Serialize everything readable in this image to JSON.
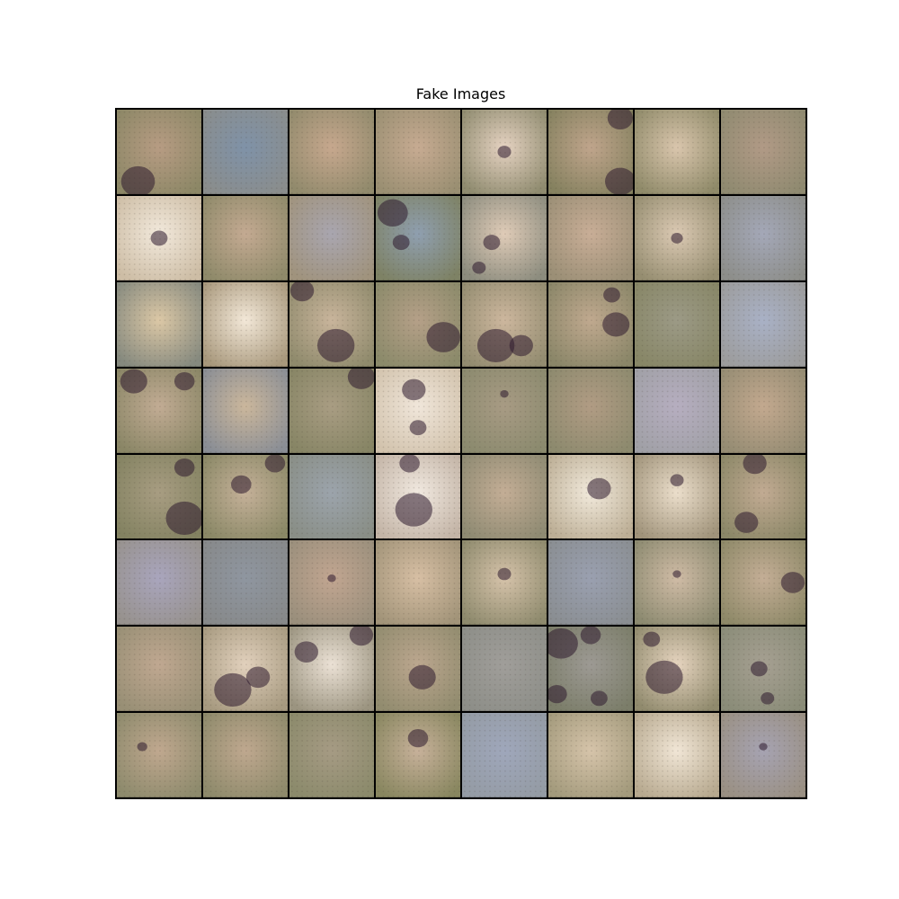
{
  "figure": {
    "title": "Fake Images"
  },
  "grid": {
    "rows": 8,
    "columns": 8,
    "tiles": [
      {
        "base": "#8c8766",
        "tint": "#b79c83",
        "dark": [
          [
            0.25,
            0.85,
            0.2
          ]
        ]
      },
      {
        "base": "#8a8d8c",
        "tint": "#7f92a8",
        "dark": []
      },
      {
        "base": "#918a6c",
        "tint": "#c7a88e",
        "dark": []
      },
      {
        "base": "#9a8f72",
        "tint": "#c7ab92",
        "dark": []
      },
      {
        "base": "#8f8b6f",
        "tint": "#e6d3c2",
        "dark": [
          [
            0.5,
            0.5,
            0.08
          ]
        ]
      },
      {
        "base": "#85815f",
        "tint": "#c0a58c",
        "dark": [
          [
            0.85,
            0.85,
            0.18
          ],
          [
            0.85,
            0.1,
            0.15
          ]
        ]
      },
      {
        "base": "#8f8a69",
        "tint": "#dac6ad",
        "dark": []
      },
      {
        "base": "#8f8a70",
        "tint": "#b19a86",
        "dark": []
      },
      {
        "base": "#cdbda5",
        "tint": "#f2e9dc",
        "dark": [
          [
            0.5,
            0.5,
            0.1
          ]
        ]
      },
      {
        "base": "#8f8a6a",
        "tint": "#c4aa92",
        "dark": []
      },
      {
        "base": "#a0937d",
        "tint": "#a9a6b0",
        "dark": []
      },
      {
        "base": "#7e8265",
        "tint": "#8f9fb0",
        "dark": [
          [
            0.2,
            0.2,
            0.18
          ],
          [
            0.3,
            0.55,
            0.1
          ]
        ]
      },
      {
        "base": "#8c8c7e",
        "tint": "#e0ccb8",
        "dark": [
          [
            0.35,
            0.55,
            0.1
          ],
          [
            0.2,
            0.85,
            0.08
          ]
        ]
      },
      {
        "base": "#9b8f76",
        "tint": "#c9ae97",
        "dark": []
      },
      {
        "base": "#958d70",
        "tint": "#dccab4",
        "dark": [
          [
            0.5,
            0.5,
            0.07
          ]
        ]
      },
      {
        "base": "#8d8e8a",
        "tint": "#a4a8b8",
        "dark": []
      },
      {
        "base": "#85897e",
        "tint": "#dcc8a6",
        "dark": []
      },
      {
        "base": "#a8987c",
        "tint": "#f3e8d8",
        "dark": []
      },
      {
        "base": "#8f8a6c",
        "tint": "#c9b59c",
        "dark": [
          [
            0.15,
            0.1,
            0.14
          ],
          [
            0.55,
            0.75,
            0.22
          ]
        ]
      },
      {
        "base": "#8b8a6a",
        "tint": "#b5a088",
        "dark": [
          [
            0.8,
            0.65,
            0.2
          ]
        ]
      },
      {
        "base": "#938c70",
        "tint": "#cdb79e",
        "dark": [
          [
            0.4,
            0.75,
            0.22
          ],
          [
            0.7,
            0.75,
            0.14
          ]
        ]
      },
      {
        "base": "#8a8668",
        "tint": "#c0a98f",
        "dark": [
          [
            0.8,
            0.5,
            0.16
          ],
          [
            0.75,
            0.15,
            0.1
          ]
        ]
      },
      {
        "base": "#878666",
        "tint": "#9c9a86",
        "dark": []
      },
      {
        "base": "#9c9c9c",
        "tint": "#a9b1c6",
        "dark": []
      },
      {
        "base": "#8a8666",
        "tint": "#c2ac94",
        "dark": [
          [
            0.2,
            0.15,
            0.16
          ],
          [
            0.8,
            0.15,
            0.12
          ]
        ]
      },
      {
        "base": "#8a8e95",
        "tint": "#cbb79c",
        "dark": []
      },
      {
        "base": "#878565",
        "tint": "#a99d83",
        "dark": [
          [
            0.85,
            0.1,
            0.16
          ]
        ]
      },
      {
        "base": "#d2c3ad",
        "tint": "#f0e6da",
        "dark": [
          [
            0.45,
            0.25,
            0.14
          ],
          [
            0.5,
            0.7,
            0.1
          ]
        ]
      },
      {
        "base": "#8b8a6e",
        "tint": "#a89b84",
        "dark": [
          [
            0.5,
            0.3,
            0.05
          ]
        ]
      },
      {
        "base": "#8d8a6e",
        "tint": "#b19c84",
        "dark": []
      },
      {
        "base": "#a0a0a6",
        "tint": "#b6aec0",
        "dark": []
      },
      {
        "base": "#958c73",
        "tint": "#c3a98f",
        "dark": []
      },
      {
        "base": "#838261",
        "tint": "#a89d82",
        "dark": [
          [
            0.8,
            0.75,
            0.22
          ],
          [
            0.8,
            0.15,
            0.12
          ]
        ]
      },
      {
        "base": "#8a8866",
        "tint": "#c5b199",
        "dark": [
          [
            0.45,
            0.35,
            0.12
          ],
          [
            0.85,
            0.1,
            0.12
          ]
        ]
      },
      {
        "base": "#898e86",
        "tint": "#9ca4ac",
        "dark": []
      },
      {
        "base": "#c3b4a6",
        "tint": "#f1e9e0",
        "dark": [
          [
            0.45,
            0.65,
            0.22
          ],
          [
            0.4,
            0.1,
            0.12
          ]
        ]
      },
      {
        "base": "#8e8a72",
        "tint": "#c4ae96",
        "dark": []
      },
      {
        "base": "#bcae95",
        "tint": "#f2eadc",
        "dark": [
          [
            0.6,
            0.4,
            0.14
          ]
        ]
      },
      {
        "base": "#a0937a",
        "tint": "#ecdfcc",
        "dark": [
          [
            0.5,
            0.3,
            0.08
          ]
        ]
      },
      {
        "base": "#8b8767",
        "tint": "#c2ab93",
        "dark": [
          [
            0.4,
            0.1,
            0.14
          ],
          [
            0.3,
            0.8,
            0.14
          ]
        ]
      },
      {
        "base": "#97928e",
        "tint": "#a9a5bd",
        "dark": []
      },
      {
        "base": "#87898a",
        "tint": "#8f96a0",
        "dark": []
      },
      {
        "base": "#9a8f7c",
        "tint": "#c2a691",
        "dark": [
          [
            0.5,
            0.45,
            0.05
          ]
        ]
      },
      {
        "base": "#a29479",
        "tint": "#d7bfa4",
        "dark": []
      },
      {
        "base": "#8e8a6d",
        "tint": "#d6c3aa",
        "dark": [
          [
            0.5,
            0.4,
            0.08
          ]
        ]
      },
      {
        "base": "#8a8e92",
        "tint": "#9aa0b0",
        "dark": []
      },
      {
        "base": "#8c8a70",
        "tint": "#d0bca6",
        "dark": [
          [
            0.5,
            0.4,
            0.05
          ]
        ]
      },
      {
        "base": "#8e8968",
        "tint": "#c4ae96",
        "dark": [
          [
            0.85,
            0.5,
            0.14
          ]
        ]
      },
      {
        "base": "#988f75",
        "tint": "#c0a891",
        "dark": []
      },
      {
        "base": "#a79a80",
        "tint": "#e2d1bd",
        "dark": [
          [
            0.35,
            0.75,
            0.22
          ],
          [
            0.65,
            0.6,
            0.14
          ]
        ]
      },
      {
        "base": "#9b9480",
        "tint": "#ece2d6",
        "dark": [
          [
            0.2,
            0.3,
            0.14
          ],
          [
            0.85,
            0.1,
            0.14
          ]
        ]
      },
      {
        "base": "#928c6f",
        "tint": "#bca78f",
        "dark": [
          [
            0.55,
            0.6,
            0.16
          ]
        ]
      },
      {
        "base": "#8d8e88",
        "tint": "#a09e9a",
        "dark": []
      },
      {
        "base": "#7b7d69",
        "tint": "#9d9a94",
        "dark": [
          [
            0.15,
            0.2,
            0.2
          ],
          [
            0.5,
            0.1,
            0.12
          ],
          [
            0.1,
            0.8,
            0.12
          ],
          [
            0.6,
            0.85,
            0.1
          ]
        ]
      },
      {
        "base": "#908a6d",
        "tint": "#e7d5c0",
        "dark": [
          [
            0.35,
            0.6,
            0.22
          ],
          [
            0.2,
            0.15,
            0.1
          ]
        ]
      },
      {
        "base": "#8a8c78",
        "tint": "#a6a092",
        "dark": [
          [
            0.45,
            0.5,
            0.1
          ],
          [
            0.55,
            0.85,
            0.08
          ]
        ]
      },
      {
        "base": "#8d8a6c",
        "tint": "#c0a88f",
        "dark": [
          [
            0.3,
            0.4,
            0.06
          ]
        ]
      },
      {
        "base": "#8e8a6b",
        "tint": "#bfa88f",
        "dark": []
      },
      {
        "base": "#8b8a6b",
        "tint": "#a69b84",
        "dark": []
      },
      {
        "base": "#88865f",
        "tint": "#c7b19a",
        "dark": [
          [
            0.5,
            0.3,
            0.12
          ]
        ]
      },
      {
        "base": "#949ba4",
        "tint": "#9fa7bb",
        "dark": []
      },
      {
        "base": "#a39a7c",
        "tint": "#d6c4aa",
        "dark": []
      },
      {
        "base": "#b7a98f",
        "tint": "#f1e6d6",
        "dark": []
      },
      {
        "base": "#9a9083",
        "tint": "#a6a3b2",
        "dark": [
          [
            0.5,
            0.4,
            0.05
          ]
        ]
      }
    ]
  }
}
